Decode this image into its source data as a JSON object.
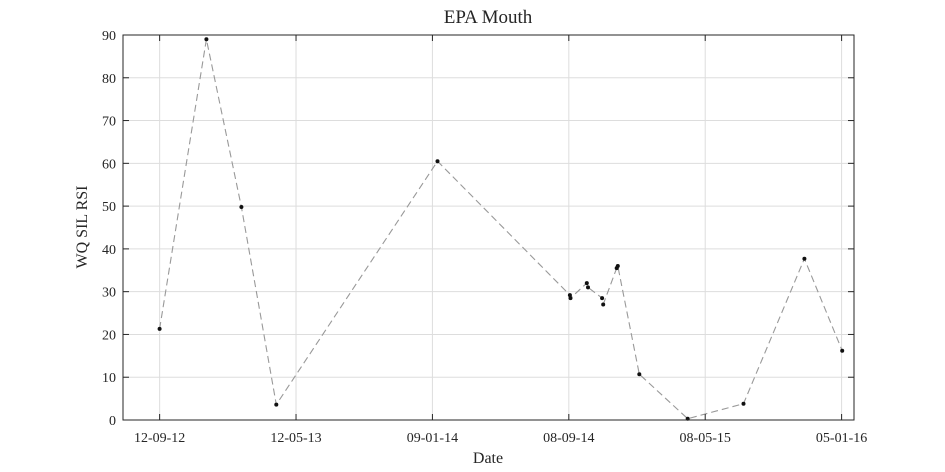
{
  "chart_data": {
    "type": "line",
    "title": "EPA Mouth",
    "xlabel": "Date",
    "ylabel": "WQ SIL RSI",
    "ylim": [
      0,
      90
    ],
    "yticks": [
      0,
      10,
      20,
      30,
      40,
      50,
      60,
      70,
      80,
      90
    ],
    "xlim": [
      "2012-07-09",
      "2016-01-27"
    ],
    "xticks": [
      {
        "date": "2012-09-12",
        "label": "12-09-12"
      },
      {
        "date": "2013-05-12",
        "label": "12-05-13"
      },
      {
        "date": "2014-01-09",
        "label": "09-01-14"
      },
      {
        "date": "2014-09-08",
        "label": "08-09-14"
      },
      {
        "date": "2015-05-08",
        "label": "08-05-15"
      },
      {
        "date": "2016-01-05",
        "label": "05-01-16"
      }
    ],
    "grid": true,
    "line_style": "dashed",
    "colors": {
      "line": "#999999",
      "marker": "#111111",
      "grid": "#dddddd",
      "axis": "#262626"
    },
    "series": [
      {
        "points": [
          {
            "x": "2012-09-12",
            "y": 21.3
          },
          {
            "x": "2012-12-04",
            "y": 89.0
          },
          {
            "x": "2013-02-04",
            "y": 49.8
          },
          {
            "x": "2013-04-07",
            "y": 3.6
          },
          {
            "x": "2014-01-18",
            "y": 60.5
          },
          {
            "x": "2014-09-10",
            "y": 29.2
          },
          {
            "x": "2014-09-11",
            "y": 28.5
          },
          {
            "x": "2014-10-10",
            "y": 32.0
          },
          {
            "x": "2014-10-12",
            "y": 31.0
          },
          {
            "x": "2014-11-06",
            "y": 28.5
          },
          {
            "x": "2014-11-08",
            "y": 27.0
          },
          {
            "x": "2014-12-02",
            "y": 35.5
          },
          {
            "x": "2014-12-04",
            "y": 36.0
          },
          {
            "x": "2015-01-11",
            "y": 10.7
          },
          {
            "x": "2015-04-07",
            "y": 0.3
          },
          {
            "x": "2015-07-15",
            "y": 3.8
          },
          {
            "x": "2015-10-31",
            "y": 37.7
          },
          {
            "x": "2016-01-06",
            "y": 16.2
          }
        ]
      }
    ]
  }
}
